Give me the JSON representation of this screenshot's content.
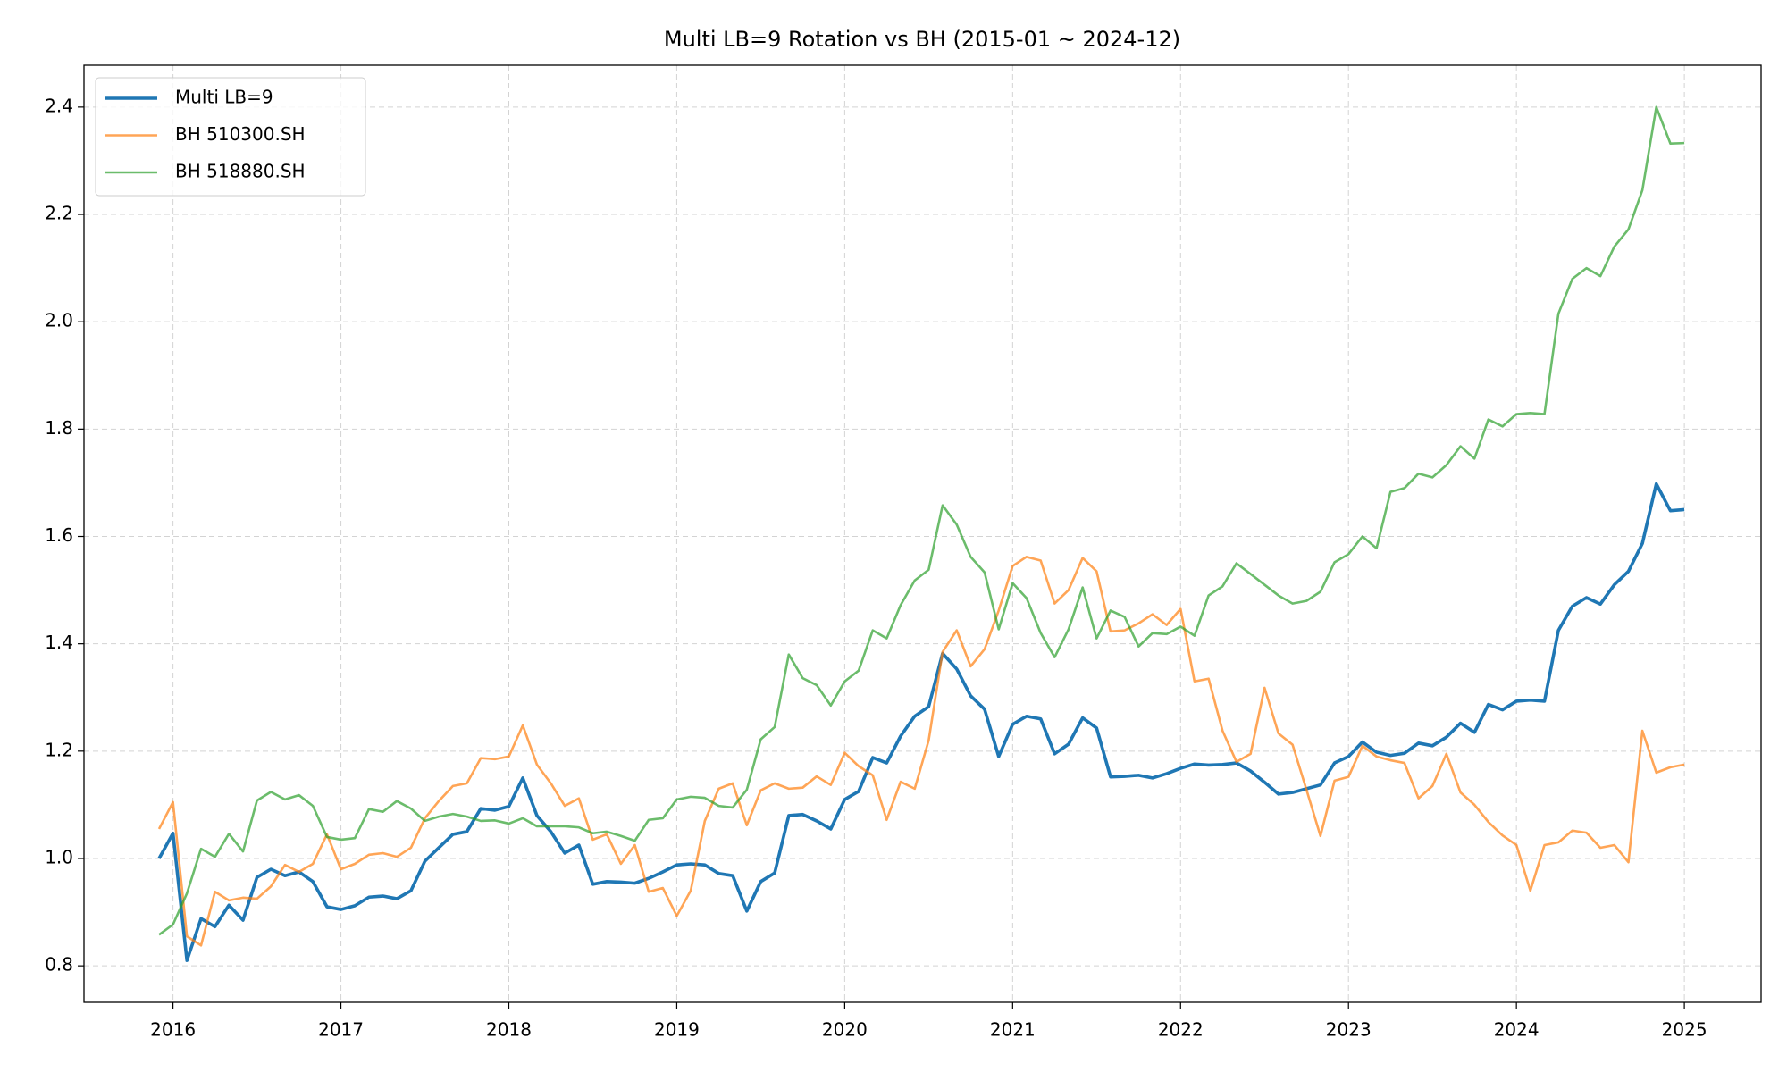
{
  "chart_data": {
    "type": "line",
    "title": "Multi LB=9 Rotation vs BH (2015-01 ~ 2024-12)",
    "x": [
      2015.917,
      2016.0,
      2016.083,
      2016.167,
      2016.25,
      2016.333,
      2016.417,
      2016.5,
      2016.583,
      2016.667,
      2016.75,
      2016.833,
      2016.917,
      2017.0,
      2017.083,
      2017.167,
      2017.25,
      2017.333,
      2017.417,
      2017.5,
      2017.583,
      2017.667,
      2017.75,
      2017.833,
      2017.917,
      2018.0,
      2018.083,
      2018.167,
      2018.25,
      2018.333,
      2018.417,
      2018.5,
      2018.583,
      2018.667,
      2018.75,
      2018.833,
      2018.917,
      2019.0,
      2019.083,
      2019.167,
      2019.25,
      2019.333,
      2019.417,
      2019.5,
      2019.583,
      2019.667,
      2019.75,
      2019.833,
      2019.917,
      2020.0,
      2020.083,
      2020.167,
      2020.25,
      2020.333,
      2020.417,
      2020.5,
      2020.583,
      2020.667,
      2020.75,
      2020.833,
      2020.917,
      2021.0,
      2021.083,
      2021.167,
      2021.25,
      2021.333,
      2021.417,
      2021.5,
      2021.583,
      2021.667,
      2021.75,
      2021.833,
      2021.917,
      2022.0,
      2022.083,
      2022.167,
      2022.25,
      2022.333,
      2022.417,
      2022.5,
      2022.583,
      2022.667,
      2022.75,
      2022.833,
      2022.917,
      2023.0,
      2023.083,
      2023.167,
      2023.25,
      2023.333,
      2023.417,
      2023.5,
      2023.583,
      2023.667,
      2023.75,
      2023.833,
      2023.917,
      2024.0,
      2024.083,
      2024.167,
      2024.25,
      2024.333,
      2024.417,
      2024.5,
      2024.583,
      2024.667,
      2024.75,
      2024.833,
      2024.917,
      2025.0
    ],
    "series": [
      {
        "name": "Multi LB=9",
        "color": "#1f77b4",
        "values": [
          1.0,
          1.047,
          0.81,
          0.888,
          0.873,
          0.913,
          0.885,
          0.965,
          0.98,
          0.968,
          0.975,
          0.957,
          0.91,
          0.905,
          0.912,
          0.928,
          0.93,
          0.925,
          0.94,
          0.995,
          1.02,
          1.045,
          1.05,
          1.093,
          1.09,
          1.097,
          1.15,
          1.08,
          1.05,
          1.01,
          1.025,
          0.952,
          0.957,
          0.956,
          0.954,
          0.963,
          0.975,
          0.988,
          0.99,
          0.988,
          0.972,
          0.968,
          0.902,
          0.957,
          0.973,
          1.08,
          1.082,
          1.07,
          1.055,
          1.11,
          1.125,
          1.188,
          1.178,
          1.228,
          1.265,
          1.283,
          1.382,
          1.353,
          1.303,
          1.278,
          1.19,
          1.25,
          1.265,
          1.26,
          1.195,
          1.213,
          1.262,
          1.243,
          1.152,
          1.153,
          1.155,
          1.15,
          1.158,
          1.168,
          1.176,
          1.174,
          1.175,
          1.178,
          1.163,
          1.142,
          1.12,
          1.123,
          1.13,
          1.137,
          1.178,
          1.19,
          1.217,
          1.198,
          1.192,
          1.196,
          1.215,
          1.21,
          1.226,
          1.252,
          1.235,
          1.287,
          1.277,
          1.293,
          1.295,
          1.293,
          1.425,
          1.47,
          1.486,
          1.474,
          1.51,
          1.535,
          1.587,
          1.698,
          1.648,
          1.65
        ]
      },
      {
        "name": "BH 510300.SH",
        "color": "#ff7f0e",
        "values": [
          1.055,
          1.105,
          0.855,
          0.838,
          0.938,
          0.922,
          0.927,
          0.925,
          0.948,
          0.988,
          0.975,
          0.99,
          1.045,
          0.98,
          0.99,
          1.007,
          1.01,
          1.003,
          1.02,
          1.075,
          1.107,
          1.135,
          1.14,
          1.187,
          1.185,
          1.19,
          1.248,
          1.175,
          1.14,
          1.098,
          1.112,
          1.035,
          1.045,
          0.99,
          1.025,
          0.938,
          0.945,
          0.893,
          0.94,
          1.07,
          1.13,
          1.14,
          1.062,
          1.127,
          1.14,
          1.13,
          1.132,
          1.153,
          1.137,
          1.197,
          1.172,
          1.155,
          1.072,
          1.143,
          1.13,
          1.22,
          1.385,
          1.425,
          1.358,
          1.39,
          1.462,
          1.545,
          1.562,
          1.555,
          1.475,
          1.5,
          1.56,
          1.535,
          1.423,
          1.425,
          1.438,
          1.455,
          1.435,
          1.465,
          1.33,
          1.335,
          1.238,
          1.18,
          1.195,
          1.318,
          1.233,
          1.212,
          1.128,
          1.042,
          1.145,
          1.152,
          1.21,
          1.19,
          1.183,
          1.178,
          1.112,
          1.135,
          1.195,
          1.123,
          1.1,
          1.068,
          1.043,
          1.025,
          0.94,
          1.025,
          1.03,
          1.052,
          1.048,
          1.02,
          1.025,
          0.993,
          1.238,
          1.16,
          1.17,
          1.175
        ]
      },
      {
        "name": "BH 518880.SH",
        "color": "#2ca02c",
        "values": [
          0.858,
          0.877,
          0.935,
          1.018,
          1.003,
          1.046,
          1.013,
          1.108,
          1.124,
          1.11,
          1.118,
          1.098,
          1.04,
          1.035,
          1.038,
          1.092,
          1.087,
          1.107,
          1.093,
          1.07,
          1.078,
          1.083,
          1.078,
          1.07,
          1.071,
          1.065,
          1.075,
          1.06,
          1.06,
          1.06,
          1.058,
          1.047,
          1.05,
          1.042,
          1.033,
          1.072,
          1.075,
          1.11,
          1.115,
          1.113,
          1.098,
          1.095,
          1.128,
          1.222,
          1.245,
          1.38,
          1.336,
          1.323,
          1.285,
          1.33,
          1.35,
          1.425,
          1.41,
          1.472,
          1.518,
          1.538,
          1.658,
          1.622,
          1.562,
          1.533,
          1.427,
          1.513,
          1.485,
          1.42,
          1.375,
          1.427,
          1.505,
          1.41,
          1.462,
          1.45,
          1.395,
          1.42,
          1.418,
          1.432,
          1.415,
          1.49,
          1.507,
          1.55,
          1.53,
          1.51,
          1.49,
          1.475,
          1.48,
          1.497,
          1.552,
          1.567,
          1.6,
          1.578,
          1.683,
          1.69,
          1.717,
          1.71,
          1.733,
          1.768,
          1.745,
          1.818,
          1.805,
          1.828,
          1.83,
          1.828,
          2.015,
          2.08,
          2.1,
          2.085,
          2.14,
          2.172,
          2.245,
          2.4,
          2.332,
          2.333
        ]
      }
    ],
    "xlim": [
      2015.47,
      2025.457
    ],
    "xticks": [
      2016,
      2017,
      2018,
      2019,
      2020,
      2021,
      2022,
      2023,
      2024,
      2025
    ],
    "ylim": [
      0.732,
      2.478
    ],
    "yticks": [
      {
        "value": 0.8,
        "label": "0.8"
      },
      {
        "value": 1.0,
        "label": "1.0"
      },
      {
        "value": 1.2,
        "label": "1.2"
      },
      {
        "value": 1.4,
        "label": "1.4"
      },
      {
        "value": 1.6,
        "label": "1.6"
      },
      {
        "value": 1.8,
        "label": "1.8"
      },
      {
        "value": 2.0,
        "label": "2.0"
      },
      {
        "value": 2.2,
        "label": "2.2"
      },
      {
        "value": 2.4,
        "label": "2.4"
      }
    ],
    "grid": true,
    "legend": "upper-left"
  }
}
